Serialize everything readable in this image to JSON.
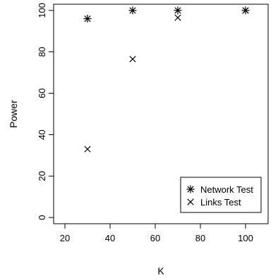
{
  "chart_data": {
    "type": "scatter",
    "title": "",
    "xlabel": "K",
    "ylabel": "Power",
    "xlim": [
      15,
      110
    ],
    "ylim": [
      -3,
      103
    ],
    "xticks": [
      20,
      40,
      60,
      80,
      100
    ],
    "yticks": [
      0,
      20,
      40,
      60,
      80,
      100
    ],
    "grid": false,
    "legend_position": "bottom-right",
    "series": [
      {
        "name": "Network Test",
        "marker": "asterisk",
        "x": [
          30,
          50,
          70,
          100
        ],
        "y": [
          96,
          100,
          100,
          100
        ]
      },
      {
        "name": "Links Test",
        "marker": "cross",
        "x": [
          30,
          50,
          70,
          100
        ],
        "y": [
          33,
          76.5,
          96.5,
          100
        ]
      }
    ]
  }
}
